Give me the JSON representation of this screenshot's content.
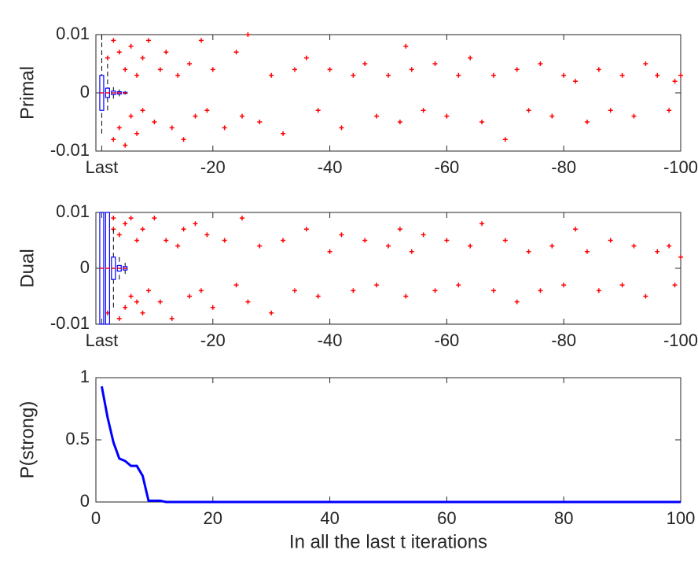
{
  "chart_data": [
    {
      "type": "box",
      "ylabel": "Primal",
      "color": "#0000ff",
      "median_color": "#ff0000",
      "outlier_color": "#ff0000",
      "xlim": [
        0,
        100
      ],
      "ylim": [
        -0.01,
        0.01
      ],
      "yticks": [
        -0.01,
        0,
        0.01
      ],
      "xticks": [
        {
          "value": 1,
          "label": "Last"
        },
        {
          "value": 20,
          "label": "-20"
        },
        {
          "value": 40,
          "label": "-40"
        },
        {
          "value": 60,
          "label": "-60"
        },
        {
          "value": 80,
          "label": "-80"
        },
        {
          "value": 100,
          "label": "-100"
        }
      ],
      "positions": [
        1,
        2,
        3,
        4,
        5
      ],
      "q1": [
        -0.003,
        -0.0008,
        -0.0003,
        -0.0002,
        -0.0001
      ],
      "median": [
        0,
        0,
        0,
        0,
        0
      ],
      "q3": [
        0.003,
        0.0008,
        0.0003,
        0.0002,
        0.0001
      ],
      "whisker_low": [
        -0.007,
        -0.003,
        -0.001,
        -0.0006,
        -0.0003
      ],
      "whisker_high": [
        0.01,
        0.005,
        0.001,
        0.0006,
        0.0003
      ],
      "outliers": {
        "x": [
          2,
          3,
          3,
          4,
          4,
          5,
          5,
          6,
          6,
          7,
          7,
          8,
          8,
          9,
          10,
          11,
          12,
          13,
          14,
          15,
          16,
          17,
          18,
          19,
          20,
          22,
          24,
          25,
          26,
          28,
          30,
          32,
          34,
          36,
          38,
          40,
          42,
          44,
          46,
          48,
          50,
          52,
          53,
          54,
          56,
          58,
          60,
          62,
          64,
          66,
          68,
          70,
          72,
          74,
          76,
          78,
          80,
          82,
          84,
          86,
          88,
          90,
          92,
          94,
          96,
          98,
          99,
          100
        ],
        "y": [
          0.006,
          0.009,
          -0.008,
          0.007,
          -0.006,
          0.004,
          -0.009,
          0.008,
          -0.004,
          0.003,
          -0.007,
          0.006,
          -0.003,
          0.009,
          -0.005,
          0.004,
          0.007,
          -0.006,
          0.003,
          -0.008,
          0.005,
          -0.004,
          0.009,
          -0.003,
          0.004,
          -0.006,
          0.007,
          -0.004,
          0.01,
          -0.005,
          0.003,
          -0.007,
          0.004,
          0.006,
          -0.003,
          0.004,
          -0.006,
          0.003,
          0.005,
          -0.004,
          0.003,
          -0.005,
          0.008,
          0.004,
          -0.003,
          0.005,
          -0.004,
          0.003,
          0.006,
          -0.005,
          0.003,
          -0.008,
          0.004,
          -0.003,
          0.005,
          -0.004,
          0.003,
          0.002,
          -0.005,
          0.004,
          -0.003,
          0.003,
          -0.004,
          0.005,
          0.003,
          -0.003,
          0.002,
          0.003
        ]
      }
    },
    {
      "type": "box",
      "ylabel": "Dual",
      "color": "#0000ff",
      "median_color": "#ff0000",
      "outlier_color": "#ff0000",
      "xlim": [
        0,
        100
      ],
      "ylim": [
        -0.01,
        0.01
      ],
      "yticks": [
        -0.01,
        0,
        0.01
      ],
      "xticks": [
        {
          "value": 1,
          "label": "Last"
        },
        {
          "value": 20,
          "label": "-20"
        },
        {
          "value": 40,
          "label": "-40"
        },
        {
          "value": 60,
          "label": "-60"
        },
        {
          "value": 80,
          "label": "-80"
        },
        {
          "value": 100,
          "label": "-100"
        }
      ],
      "positions": [
        1,
        2,
        3,
        4,
        5
      ],
      "q1": [
        -0.01,
        -0.01,
        -0.002,
        -0.0005,
        -0.0003
      ],
      "median": [
        0,
        0,
        0,
        0,
        0
      ],
      "q3": [
        0.01,
        0.01,
        0.002,
        0.0005,
        0.0003
      ],
      "whisker_low": [
        -0.01,
        -0.01,
        -0.007,
        -0.002,
        -0.001
      ],
      "whisker_high": [
        0.01,
        0.01,
        0.007,
        0.002,
        0.001
      ],
      "outliers": {
        "x": [
          2,
          3,
          3,
          4,
          4,
          5,
          5,
          6,
          6,
          7,
          7,
          8,
          8,
          9,
          10,
          11,
          12,
          13,
          14,
          15,
          16,
          17,
          18,
          19,
          20,
          22,
          24,
          25,
          26,
          28,
          30,
          32,
          34,
          36,
          38,
          40,
          42,
          44,
          46,
          48,
          50,
          52,
          53,
          54,
          56,
          58,
          60,
          62,
          64,
          66,
          68,
          70,
          72,
          74,
          76,
          78,
          80,
          82,
          84,
          86,
          88,
          90,
          92,
          94,
          96,
          98,
          99,
          100
        ],
        "y": [
          -0.008,
          0.009,
          0.007,
          -0.009,
          0.006,
          -0.007,
          0.008,
          -0.005,
          0.009,
          -0.006,
          0.005,
          -0.008,
          0.007,
          -0.004,
          0.009,
          -0.006,
          0.005,
          -0.009,
          0.004,
          0.007,
          -0.005,
          0.008,
          -0.004,
          0.006,
          -0.007,
          0.005,
          -0.003,
          0.009,
          -0.006,
          0.004,
          -0.008,
          0.005,
          -0.004,
          0.007,
          -0.005,
          0.003,
          0.006,
          -0.004,
          0.005,
          -0.003,
          0.004,
          0.007,
          -0.005,
          0.003,
          0.006,
          -0.004,
          0.005,
          -0.003,
          0.004,
          0.008,
          -0.004,
          0.005,
          -0.006,
          0.003,
          -0.004,
          0.004,
          -0.003,
          0.007,
          0.003,
          -0.004,
          0.005,
          -0.003,
          0.004,
          -0.005,
          0.003,
          0.004,
          -0.003,
          0.002
        ]
      }
    },
    {
      "type": "line",
      "xlabel": "In all the last t iterations",
      "ylabel": "P(strong)",
      "color": "#0000ff",
      "xlim": [
        0,
        100
      ],
      "xticks": [
        0,
        20,
        40,
        60,
        80,
        100
      ],
      "ylim": [
        0,
        1
      ],
      "yticks": [
        0,
        0.5,
        1
      ],
      "x": [
        1,
        2,
        3,
        4,
        5,
        6,
        7,
        8,
        9,
        10,
        11,
        12,
        100
      ],
      "values": [
        0.93,
        0.68,
        0.48,
        0.35,
        0.33,
        0.29,
        0.29,
        0.21,
        0.01,
        0.01,
        0.01,
        0,
        0
      ]
    }
  ]
}
